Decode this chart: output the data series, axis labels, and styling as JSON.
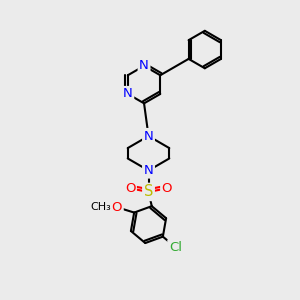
{
  "background_color": "#ebebeb",
  "atom_colors": {
    "N": "#0000ff",
    "O": "#ff0000",
    "S": "#bbbb00",
    "Cl": "#33aa33",
    "C": "#000000"
  },
  "bond_color": "#000000",
  "bond_width": 1.5,
  "font_size_atoms": 9.5,
  "fig_size": [
    3.0,
    3.0
  ],
  "dpi": 100
}
